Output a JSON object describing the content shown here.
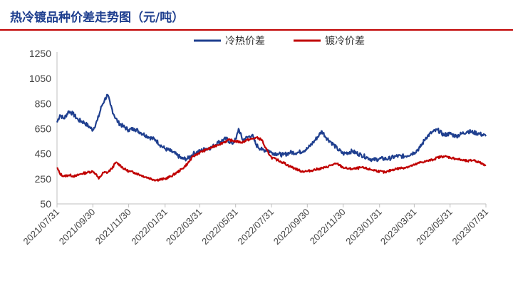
{
  "title": "热冷镀品种价差走势图（元/吨）",
  "colors": {
    "title": "#1f3f8f",
    "rule": "#c00000",
    "series1": "#1f3f8f",
    "series2": "#c00000",
    "axis": "#bfbfbf"
  },
  "chart_data": {
    "type": "line",
    "title": "热冷镀品种价差走势图（元/吨）",
    "xlabel": "",
    "ylabel": "",
    "ylim": [
      50,
      1250
    ],
    "yticks": [
      1250,
      1050,
      850,
      650,
      450,
      250,
      50
    ],
    "xlim": [
      "2021-07-31",
      "2023-07-31"
    ],
    "xticks": [
      "2021/07/31",
      "2021/09/30",
      "2021/11/30",
      "2022/01/31",
      "2022/03/31",
      "2022/05/31",
      "2022/07/31",
      "2022/09/30",
      "2022/11/30",
      "2023/01/31",
      "2023/03/31",
      "2023/05/31",
      "2023/07/31"
    ],
    "grid": false,
    "legend_position": "top-right",
    "series": [
      {
        "name": "冷热价差",
        "color": "#1f3f8f",
        "points": [
          [
            "2021-07-31",
            700
          ],
          [
            "2021-08-05",
            760
          ],
          [
            "2021-08-12",
            730
          ],
          [
            "2021-08-20",
            790
          ],
          [
            "2021-08-27",
            770
          ],
          [
            "2021-09-05",
            720
          ],
          [
            "2021-09-15",
            700
          ],
          [
            "2021-09-25",
            660
          ],
          [
            "2021-09-30",
            640
          ],
          [
            "2021-10-08",
            720
          ],
          [
            "2021-10-15",
            830
          ],
          [
            "2021-10-20",
            880
          ],
          [
            "2021-10-25",
            920
          ],
          [
            "2021-10-30",
            840
          ],
          [
            "2021-11-05",
            760
          ],
          [
            "2021-11-12",
            700
          ],
          [
            "2021-11-20",
            670
          ],
          [
            "2021-11-30",
            640
          ],
          [
            "2021-12-10",
            650
          ],
          [
            "2021-12-20",
            620
          ],
          [
            "2022-01-05",
            580
          ],
          [
            "2022-01-15",
            560
          ],
          [
            "2022-01-25",
            510
          ],
          [
            "2022-01-31",
            490
          ],
          [
            "2022-02-10",
            470
          ],
          [
            "2022-02-20",
            440
          ],
          [
            "2022-03-01",
            410
          ],
          [
            "2022-03-10",
            410
          ],
          [
            "2022-03-20",
            450
          ],
          [
            "2022-03-31",
            470
          ],
          [
            "2022-04-10",
            490
          ],
          [
            "2022-04-20",
            500
          ],
          [
            "2022-05-01",
            540
          ],
          [
            "2022-05-15",
            570
          ],
          [
            "2022-05-25",
            530
          ],
          [
            "2022-06-01",
            570
          ],
          [
            "2022-06-05",
            650
          ],
          [
            "2022-06-12",
            560
          ],
          [
            "2022-06-20",
            580
          ],
          [
            "2022-06-28",
            600
          ],
          [
            "2022-07-05",
            520
          ],
          [
            "2022-07-15",
            480
          ],
          [
            "2022-07-25",
            480
          ],
          [
            "2022-07-31",
            460
          ],
          [
            "2022-08-10",
            450
          ],
          [
            "2022-08-20",
            440
          ],
          [
            "2022-09-01",
            460
          ],
          [
            "2022-09-15",
            460
          ],
          [
            "2022-09-30",
            490
          ],
          [
            "2022-10-10",
            540
          ],
          [
            "2022-10-20",
            600
          ],
          [
            "2022-10-25",
            630
          ],
          [
            "2022-11-01",
            580
          ],
          [
            "2022-11-10",
            540
          ],
          [
            "2022-11-20",
            490
          ],
          [
            "2022-11-30",
            450
          ],
          [
            "2022-12-15",
            470
          ],
          [
            "2022-12-31",
            440
          ],
          [
            "2023-01-10",
            420
          ],
          [
            "2023-01-20",
            400
          ],
          [
            "2023-01-31",
            410
          ],
          [
            "2023-02-15",
            410
          ],
          [
            "2023-02-28",
            430
          ],
          [
            "2023-03-15",
            430
          ],
          [
            "2023-03-31",
            460
          ],
          [
            "2023-04-10",
            500
          ],
          [
            "2023-04-20",
            580
          ],
          [
            "2023-04-30",
            620
          ],
          [
            "2023-05-10",
            640
          ],
          [
            "2023-05-20",
            600
          ],
          [
            "2023-05-31",
            610
          ],
          [
            "2023-06-10",
            590
          ],
          [
            "2023-06-20",
            610
          ],
          [
            "2023-06-30",
            630
          ],
          [
            "2023-07-10",
            620
          ],
          [
            "2023-07-20",
            610
          ],
          [
            "2023-07-31",
            590
          ]
        ]
      },
      {
        "name": "镀冷价差",
        "color": "#c00000",
        "points": [
          [
            "2021-07-31",
            340
          ],
          [
            "2021-08-05",
            290
          ],
          [
            "2021-08-12",
            270
          ],
          [
            "2021-08-20",
            280
          ],
          [
            "2021-08-31",
            270
          ],
          [
            "2021-09-10",
            290
          ],
          [
            "2021-09-20",
            300
          ],
          [
            "2021-09-30",
            310
          ],
          [
            "2021-10-05",
            290
          ],
          [
            "2021-10-10",
            250
          ],
          [
            "2021-10-18",
            300
          ],
          [
            "2021-10-25",
            300
          ],
          [
            "2021-11-01",
            330
          ],
          [
            "2021-11-08",
            380
          ],
          [
            "2021-11-15",
            360
          ],
          [
            "2021-11-22",
            330
          ],
          [
            "2021-11-30",
            310
          ],
          [
            "2021-12-10",
            300
          ],
          [
            "2021-12-20",
            280
          ],
          [
            "2022-01-01",
            260
          ],
          [
            "2022-01-15",
            240
          ],
          [
            "2022-01-31",
            250
          ],
          [
            "2022-02-10",
            270
          ],
          [
            "2022-02-20",
            300
          ],
          [
            "2022-03-01",
            330
          ],
          [
            "2022-03-10",
            370
          ],
          [
            "2022-03-20",
            430
          ],
          [
            "2022-03-31",
            460
          ],
          [
            "2022-04-10",
            480
          ],
          [
            "2022-04-20",
            500
          ],
          [
            "2022-04-30",
            520
          ],
          [
            "2022-05-10",
            540
          ],
          [
            "2022-05-20",
            560
          ],
          [
            "2022-05-31",
            550
          ],
          [
            "2022-06-10",
            540
          ],
          [
            "2022-06-20",
            560
          ],
          [
            "2022-06-30",
            570
          ],
          [
            "2022-07-05",
            580
          ],
          [
            "2022-07-15",
            560
          ],
          [
            "2022-07-20",
            500
          ],
          [
            "2022-07-31",
            420
          ],
          [
            "2022-08-10",
            400
          ],
          [
            "2022-08-20",
            380
          ],
          [
            "2022-08-31",
            350
          ],
          [
            "2022-09-10",
            330
          ],
          [
            "2022-09-20",
            310
          ],
          [
            "2022-09-30",
            310
          ],
          [
            "2022-10-10",
            320
          ],
          [
            "2022-10-20",
            330
          ],
          [
            "2022-10-31",
            340
          ],
          [
            "2022-11-10",
            360
          ],
          [
            "2022-11-20",
            370
          ],
          [
            "2022-11-30",
            340
          ],
          [
            "2022-12-10",
            330
          ],
          [
            "2022-12-20",
            330
          ],
          [
            "2022-12-31",
            340
          ],
          [
            "2023-01-10",
            330
          ],
          [
            "2023-01-20",
            320
          ],
          [
            "2023-01-31",
            310
          ],
          [
            "2023-02-10",
            300
          ],
          [
            "2023-02-20",
            320
          ],
          [
            "2023-02-28",
            330
          ],
          [
            "2023-03-15",
            340
          ],
          [
            "2023-03-31",
            360
          ],
          [
            "2023-04-10",
            380
          ],
          [
            "2023-04-20",
            390
          ],
          [
            "2023-04-30",
            400
          ],
          [
            "2023-05-10",
            420
          ],
          [
            "2023-05-20",
            430
          ],
          [
            "2023-05-31",
            420
          ],
          [
            "2023-06-10",
            410
          ],
          [
            "2023-06-20",
            400
          ],
          [
            "2023-06-30",
            390
          ],
          [
            "2023-07-10",
            400
          ],
          [
            "2023-07-20",
            380
          ],
          [
            "2023-07-31",
            360
          ]
        ]
      }
    ]
  }
}
